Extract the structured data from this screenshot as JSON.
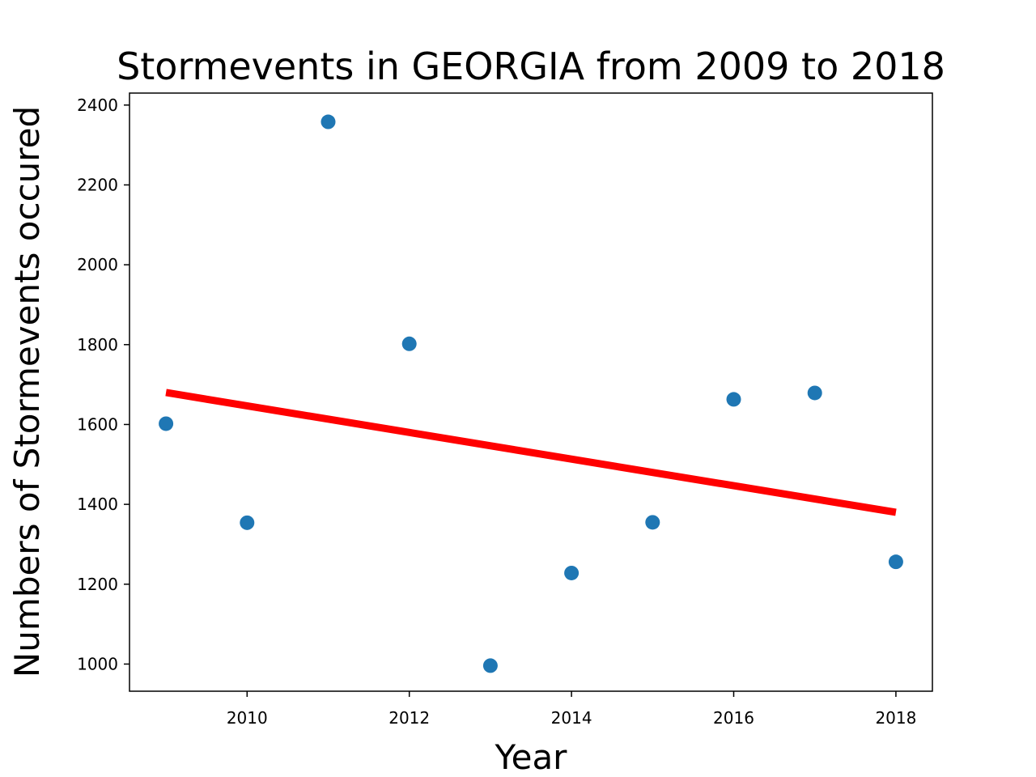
{
  "chart_data": {
    "type": "scatter",
    "title": "Stormevents in GEORGIA from 2009 to 2018",
    "xlabel": "Year",
    "ylabel": "Numbers of Stormevents occured",
    "xlim": [
      2008.55,
      2018.45
    ],
    "ylim": [
      932,
      2430
    ],
    "xticks": [
      2010,
      2012,
      2014,
      2016,
      2018
    ],
    "yticks": [
      1000,
      1200,
      1400,
      1600,
      1800,
      2000,
      2200,
      2400
    ],
    "grid": false,
    "series": [
      {
        "type": "scatter",
        "color": "#1f77b4",
        "x": [
          2009,
          2010,
          2011,
          2012,
          2013,
          2014,
          2015,
          2016,
          2017,
          2018
        ],
        "y": [
          1602,
          1354,
          2358,
          1802,
          996,
          1228,
          1355,
          1663,
          1679,
          1256
        ]
      },
      {
        "type": "line",
        "color": "#ff0000",
        "x": [
          2009,
          2018
        ],
        "y": [
          1680,
          1380
        ]
      }
    ]
  }
}
